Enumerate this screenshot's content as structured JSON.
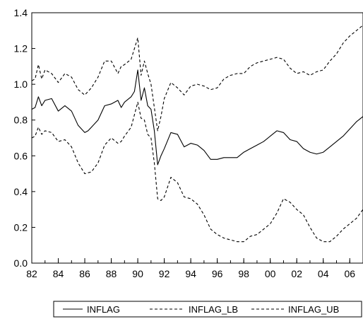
{
  "chart_data": {
    "type": "line",
    "title": "",
    "xlabel": "",
    "ylabel": "",
    "xlim": [
      1982.0,
      2007.0
    ],
    "ylim": [
      0.0,
      1.4
    ],
    "y_ticks": [
      "0.0",
      "0.2",
      "0.4",
      "0.6",
      "0.8",
      "1.0",
      "1.2",
      "1.4"
    ],
    "x_ticks": [
      "82",
      "84",
      "86",
      "88",
      "90",
      "92",
      "94",
      "96",
      "98",
      "00",
      "02",
      "04",
      "06"
    ],
    "grid": false,
    "legend_position": "bottom",
    "series": [
      {
        "name": "INFLAG",
        "style": "solid",
        "x": [
          1982.0,
          1982.25,
          1982.5,
          1982.75,
          1983.0,
          1983.5,
          1984.0,
          1984.5,
          1985.0,
          1985.5,
          1986.0,
          1986.25,
          1986.5,
          1987.0,
          1987.5,
          1988.0,
          1988.5,
          1988.75,
          1989.0,
          1989.5,
          1989.75,
          1990.0,
          1990.25,
          1990.5,
          1990.75,
          1991.0,
          1991.25,
          1991.5,
          1991.75,
          1992.0,
          1992.5,
          1993.0,
          1993.5,
          1994.0,
          1994.5,
          1995.0,
          1995.5,
          1996.0,
          1996.5,
          1997.0,
          1997.5,
          1998.0,
          1998.5,
          1999.0,
          1999.5,
          2000.0,
          2000.5,
          2001.0,
          2001.5,
          2002.0,
          2002.5,
          2003.0,
          2003.5,
          2004.0,
          2004.5,
          2005.0,
          2005.5,
          2006.0,
          2006.5,
          2007.0
        ],
        "values": [
          0.86,
          0.87,
          0.93,
          0.88,
          0.91,
          0.92,
          0.85,
          0.88,
          0.85,
          0.77,
          0.73,
          0.74,
          0.76,
          0.8,
          0.88,
          0.89,
          0.91,
          0.87,
          0.9,
          0.93,
          0.96,
          1.08,
          0.91,
          0.98,
          0.88,
          0.86,
          0.74,
          0.55,
          0.6,
          0.64,
          0.73,
          0.72,
          0.65,
          0.67,
          0.66,
          0.63,
          0.58,
          0.58,
          0.59,
          0.59,
          0.59,
          0.62,
          0.64,
          0.66,
          0.68,
          0.71,
          0.74,
          0.73,
          0.69,
          0.68,
          0.64,
          0.62,
          0.61,
          0.62,
          0.65,
          0.68,
          0.71,
          0.75,
          0.79,
          0.82
        ]
      },
      {
        "name": "INFLAG_LB",
        "style": "dashed",
        "x": [
          1982.0,
          1982.25,
          1982.5,
          1982.75,
          1983.0,
          1983.5,
          1984.0,
          1984.5,
          1985.0,
          1985.5,
          1986.0,
          1986.5,
          1987.0,
          1987.5,
          1988.0,
          1988.5,
          1988.75,
          1989.0,
          1989.5,
          1990.0,
          1990.25,
          1990.5,
          1990.75,
          1991.0,
          1991.25,
          1991.5,
          1991.75,
          1992.0,
          1992.5,
          1993.0,
          1993.5,
          1994.0,
          1994.5,
          1995.0,
          1995.5,
          1996.0,
          1996.5,
          1997.0,
          1997.5,
          1998.0,
          1998.5,
          1999.0,
          1999.5,
          2000.0,
          2000.5,
          2001.0,
          2001.5,
          2002.0,
          2002.5,
          2003.0,
          2003.5,
          2004.0,
          2004.5,
          2005.0,
          2005.5,
          2006.0,
          2006.5,
          2007.0
        ],
        "values": [
          0.7,
          0.71,
          0.76,
          0.72,
          0.74,
          0.73,
          0.68,
          0.69,
          0.65,
          0.56,
          0.5,
          0.51,
          0.56,
          0.66,
          0.7,
          0.67,
          0.68,
          0.71,
          0.76,
          0.9,
          0.81,
          0.8,
          0.72,
          0.7,
          0.56,
          0.36,
          0.35,
          0.37,
          0.48,
          0.45,
          0.37,
          0.36,
          0.33,
          0.27,
          0.19,
          0.16,
          0.14,
          0.13,
          0.12,
          0.12,
          0.15,
          0.16,
          0.19,
          0.22,
          0.28,
          0.36,
          0.34,
          0.3,
          0.27,
          0.2,
          0.14,
          0.12,
          0.12,
          0.15,
          0.19,
          0.22,
          0.25,
          0.3
        ]
      },
      {
        "name": "INFLAG_UB",
        "style": "dashed",
        "x": [
          1982.0,
          1982.25,
          1982.5,
          1982.75,
          1983.0,
          1983.5,
          1984.0,
          1984.5,
          1985.0,
          1985.5,
          1986.0,
          1986.5,
          1987.0,
          1987.5,
          1988.0,
          1988.5,
          1988.75,
          1989.0,
          1989.5,
          1990.0,
          1990.25,
          1990.5,
          1990.75,
          1991.0,
          1991.25,
          1991.5,
          1991.75,
          1992.0,
          1992.5,
          1993.0,
          1993.5,
          1994.0,
          1994.5,
          1995.0,
          1995.5,
          1996.0,
          1996.5,
          1997.0,
          1997.5,
          1998.0,
          1998.5,
          1999.0,
          1999.5,
          2000.0,
          2000.5,
          2001.0,
          2001.5,
          2002.0,
          2002.5,
          2003.0,
          2003.5,
          2004.0,
          2004.5,
          2005.0,
          2005.5,
          2006.0,
          2006.5,
          2007.0
        ],
        "values": [
          1.02,
          1.03,
          1.11,
          1.03,
          1.08,
          1.06,
          1.01,
          1.06,
          1.04,
          0.97,
          0.94,
          0.98,
          1.04,
          1.13,
          1.13,
          1.06,
          1.1,
          1.11,
          1.14,
          1.26,
          1.05,
          1.13,
          1.06,
          1.0,
          0.87,
          0.74,
          0.82,
          0.92,
          1.01,
          0.98,
          0.94,
          0.99,
          1.0,
          0.99,
          0.97,
          0.98,
          1.03,
          1.05,
          1.06,
          1.06,
          1.1,
          1.12,
          1.13,
          1.14,
          1.15,
          1.14,
          1.09,
          1.06,
          1.07,
          1.05,
          1.07,
          1.08,
          1.13,
          1.17,
          1.23,
          1.27,
          1.3,
          1.33
        ]
      }
    ]
  },
  "legend": {
    "items": [
      "INFLAG",
      "INFLAG_LB",
      "INFLAG_UB"
    ]
  },
  "colors": {
    "line": "#000000",
    "background": "#ffffff"
  }
}
